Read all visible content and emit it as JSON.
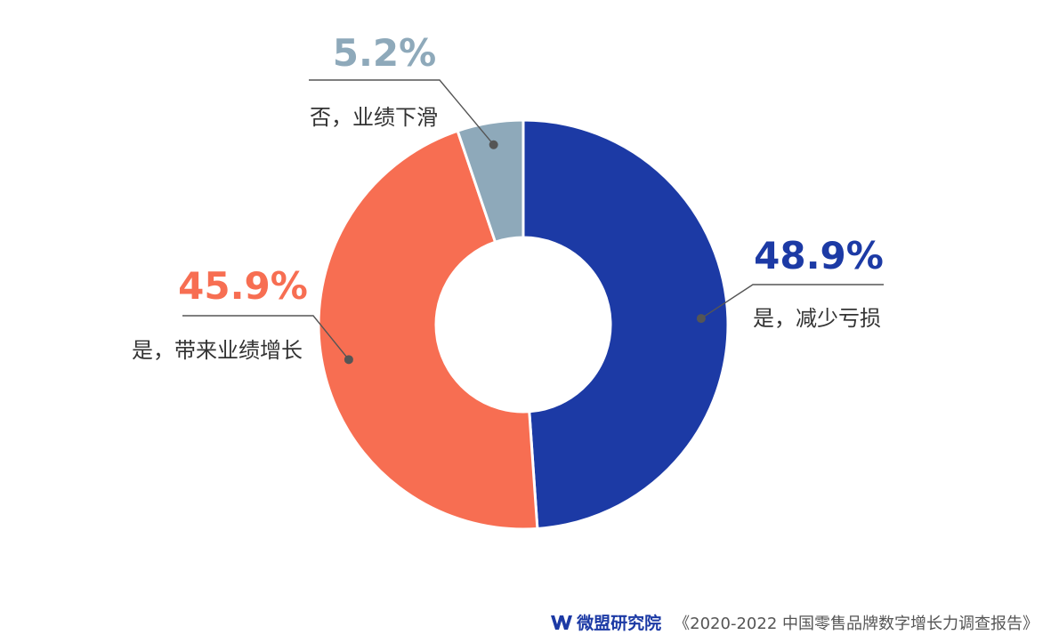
{
  "chart_data": {
    "type": "pie",
    "donut": true,
    "slices": [
      {
        "label": "是，减少亏损",
        "value": 48.9,
        "display": "48.9%",
        "color": "#1c3aa5"
      },
      {
        "label": "是，带来业绩增长",
        "value": 45.9,
        "display": "45.9%",
        "color": "#f76e52"
      },
      {
        "label": "否，业绩下滑",
        "value": 5.2,
        "display": "5.2%",
        "color": "#8ea9ba"
      }
    ],
    "start_angle": "12 o'clock",
    "direction": "clockwise"
  },
  "footer": {
    "brand": "微盟研究院",
    "report": "《2020-2022 中国零售品牌数字增长力调查报告》",
    "brand_color": "#1c3aa5"
  }
}
